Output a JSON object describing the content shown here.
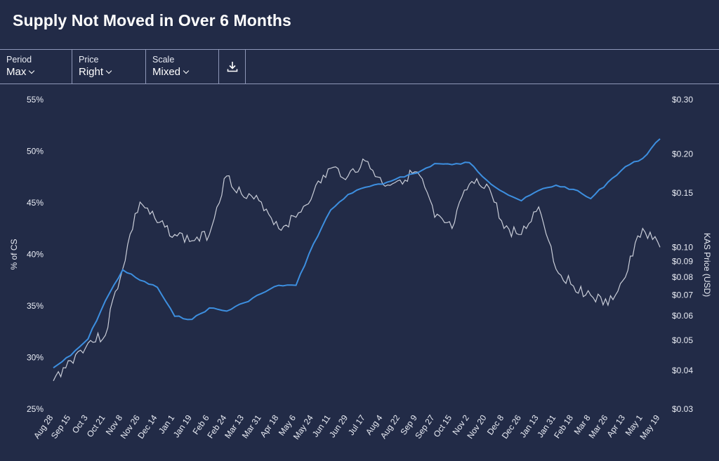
{
  "header": {
    "title": "Supply Not Moved in Over 6 Months"
  },
  "toolbar": {
    "period": {
      "label": "Period",
      "value": "Max"
    },
    "price": {
      "label": "Price",
      "value": "Right"
    },
    "scale": {
      "label": "Scale",
      "value": "Mixed"
    },
    "download_icon": "download-icon"
  },
  "colors": {
    "background": "#222b47",
    "supply_line": "#3d8fe0",
    "price_line": "#c9cdd8"
  },
  "chart_data": {
    "type": "line",
    "title": "",
    "ylabel": "% of CS",
    "y2label": "KAS Price (USD)",
    "ylim": [
      25,
      55
    ],
    "y2lim": [
      0.03,
      0.3
    ],
    "y2scale": "log",
    "yticks": [
      "25%",
      "30%",
      "35%",
      "40%",
      "45%",
      "50%",
      "55%"
    ],
    "y2ticks": [
      {
        "v": 0.03,
        "label": "$0.03"
      },
      {
        "v": 0.04,
        "label": "$0.04"
      },
      {
        "v": 0.05,
        "label": "$0.05"
      },
      {
        "v": 0.06,
        "label": "$0.06"
      },
      {
        "v": 0.07,
        "label": "$0.07"
      },
      {
        "v": 0.08,
        "label": "$0.08"
      },
      {
        "v": 0.09,
        "label": "$0.09"
      },
      {
        "v": 0.1,
        "label": "$0.10"
      },
      {
        "v": 0.15,
        "label": "$0.15"
      },
      {
        "v": 0.2,
        "label": "$0.20"
      },
      {
        "v": 0.3,
        "label": "$0.30"
      }
    ],
    "x": [
      "Aug 28",
      "Sep 15",
      "Oct 3",
      "Oct 21",
      "Nov 8",
      "Nov 26",
      "Dec 14",
      "Jan 1",
      "Jan 19",
      "Feb 6",
      "Feb 24",
      "Mar 13",
      "Mar 31",
      "Apr 18",
      "May 6",
      "May 24",
      "Jun 11",
      "Jun 29",
      "Jul 17",
      "Aug 4",
      "Aug 22",
      "Sep 9",
      "Sep 27",
      "Oct 15",
      "Nov 2",
      "Nov 20",
      "Dec 8",
      "Dec 26",
      "Jan 13",
      "Jan 31",
      "Feb 18",
      "Mar 8",
      "Mar 26",
      "Apr 13",
      "May 1",
      "May 19"
    ],
    "grid": false,
    "legend": "none",
    "series": [
      {
        "axis": "left",
        "values": [
          29.0,
          30.2,
          31.8,
          35.5,
          38.5,
          37.5,
          36.8,
          34.0,
          33.7,
          34.8,
          34.5,
          35.3,
          36.2,
          37.0,
          37.0,
          41.0,
          44.3,
          45.8,
          46.5,
          46.8,
          47.5,
          47.9,
          48.8,
          48.7,
          48.9,
          47.2,
          46.0,
          45.2,
          46.2,
          46.7,
          46.3,
          45.4,
          47.0,
          48.5,
          49.3,
          51.2
        ]
      },
      {
        "axis": "right",
        "values": [
          0.037,
          0.043,
          0.049,
          0.052,
          0.085,
          0.14,
          0.12,
          0.11,
          0.105,
          0.11,
          0.17,
          0.145,
          0.14,
          0.115,
          0.125,
          0.15,
          0.18,
          0.17,
          0.19,
          0.16,
          0.165,
          0.175,
          0.125,
          0.115,
          0.16,
          0.16,
          0.115,
          0.11,
          0.135,
          0.085,
          0.075,
          0.07,
          0.065,
          0.08,
          0.115,
          0.1
        ]
      }
    ]
  }
}
